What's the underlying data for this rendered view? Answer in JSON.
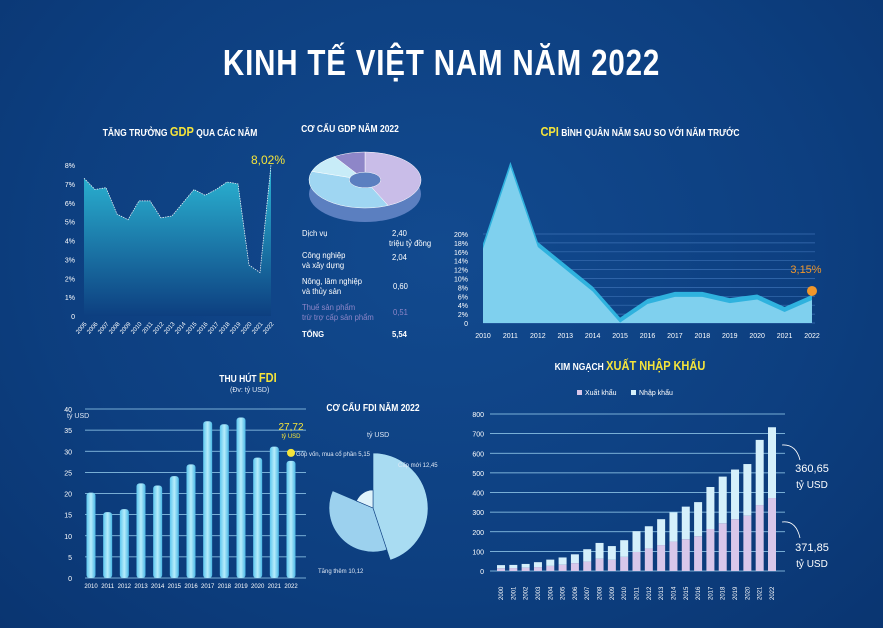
{
  "title": "KINH TẾ VIỆT NAM NĂM 2022",
  "colors": {
    "background": "#0d3f80",
    "area": "#7fd0ee",
    "highlight": "#f5e43a",
    "cpi_marker": "#f0962a",
    "export": "#d8c7ea",
    "import": "#d5f0fb"
  },
  "chart_data": [
    {
      "type": "area",
      "title_pre": "TĂNG TRƯỞNG ",
      "title_hl": "GDP",
      "title_post": " QUA CÁC NĂM",
      "x": [
        "2005",
        "2006",
        "2007",
        "2008",
        "2009",
        "2010",
        "2011",
        "2012",
        "2013",
        "2014",
        "2015",
        "2016",
        "2017",
        "2018",
        "2019",
        "2020",
        "2021",
        "2022"
      ],
      "values": [
        7.3,
        6.7,
        6.8,
        5.4,
        5.1,
        6.1,
        6.1,
        5.2,
        5.3,
        6.0,
        6.7,
        6.4,
        6.7,
        7.1,
        7.0,
        2.7,
        2.3,
        8.02
      ],
      "yticks": [
        "0",
        "1%",
        "2%",
        "3%",
        "4%",
        "5%",
        "6%",
        "7%",
        "8%"
      ],
      "ylim": [
        0,
        8
      ],
      "annotation": "8,02%"
    },
    {
      "type": "pie",
      "title": "CƠ CẤU GDP NĂM 2022",
      "unit": "triệu tỷ đồng",
      "items": [
        {
          "label": "Dịch vụ",
          "value": "2,40",
          "v": 2.4,
          "color": "#c9bde8"
        },
        {
          "label": "Công nghiệp\nvà xây dựng",
          "value": "2,04",
          "v": 2.04,
          "color": "#9fd6f2"
        },
        {
          "label": "Nông, lâm nghiệp\nvà thủy sản",
          "value": "0,60",
          "v": 0.6,
          "color": "#c8ecf8"
        },
        {
          "label": "Thuế sản phẩm\ntrừ trợ cấp sản phẩm",
          "value": "0,51",
          "v": 0.51,
          "color": "#8e86c8"
        }
      ],
      "total_label": "TỔNG",
      "total_value": "5,54"
    },
    {
      "type": "area",
      "title_hl": "CPI",
      "title_post": " BÌNH QUÂN NĂM SAU SO VỚI NĂM TRƯỚC",
      "x": [
        "2010",
        "2011",
        "2012",
        "2013",
        "2014",
        "2015",
        "2016",
        "2017",
        "2018",
        "2019",
        "2020",
        "2021",
        "2022"
      ],
      "values": [
        8.9,
        18.1,
        9.1,
        6.6,
        4.1,
        0.6,
        2.7,
        3.5,
        3.5,
        2.8,
        3.2,
        1.8,
        3.15
      ],
      "yticks": [
        "0",
        "2%",
        "4%",
        "6%",
        "8%",
        "10%",
        "12%",
        "14%",
        "16%",
        "18%",
        "20%"
      ],
      "ylim": [
        0,
        20
      ],
      "grid": true,
      "annotation": "3,15%"
    },
    {
      "type": "bar",
      "title_pre": "THU HÚT ",
      "title_hl": "FDI",
      "subtitle": "(Đv: tỷ USD)",
      "ylabel": "tỷ USD",
      "x": [
        "2010",
        "2011",
        "2012",
        "2013",
        "2014",
        "2015",
        "2016",
        "2017",
        "2018",
        "2019",
        "2020",
        "2021",
        "2022"
      ],
      "values": [
        20.2,
        15.6,
        16.3,
        22.4,
        21.9,
        24.1,
        26.9,
        37.1,
        36.4,
        38.0,
        28.5,
        31.1,
        27.72
      ],
      "yticks": [
        "0",
        "5",
        "10",
        "15",
        "20",
        "25",
        "30",
        "35",
        "40"
      ],
      "ylim": [
        0,
        40
      ],
      "grid": true,
      "annotation": "27,72",
      "annotation_unit": "tỷ USD"
    },
    {
      "type": "pie",
      "title": "CƠ CẤU FDI NĂM 2022",
      "unit": "tỷ USD",
      "items": [
        {
          "label": "Cấp mới 12,45",
          "v": 12.45
        },
        {
          "label": "Tăng thêm 10,12",
          "v": 10.12
        },
        {
          "label": "Góp vốn, mua cổ phần 5,15",
          "v": 5.15
        }
      ]
    },
    {
      "type": "stacked-bar",
      "title_pre": "KIM NGẠCH ",
      "title_hl": "XUẤT NHẬP KHẨU",
      "legend": [
        "Xuất khẩu",
        "Nhập khẩu"
      ],
      "legend_position": "top",
      "x": [
        "2000",
        "2001",
        "2002",
        "2003",
        "2004",
        "2005",
        "2006",
        "2007",
        "2008",
        "2009",
        "2010",
        "2011",
        "2012",
        "2013",
        "2014",
        "2015",
        "2016",
        "2017",
        "2018",
        "2019",
        "2020",
        "2021",
        "2022"
      ],
      "series": [
        {
          "name": "Xuất khẩu",
          "values": [
            14,
            15,
            17,
            20,
            26,
            32,
            40,
            48,
            63,
            57,
            72,
            97,
            115,
            132,
            150,
            162,
            177,
            214,
            243,
            264,
            282,
            336,
            371.85
          ]
        },
        {
          "name": "Nhập khẩu",
          "values": [
            16,
            16,
            19,
            25,
            32,
            37,
            45,
            63,
            80,
            70,
            85,
            106,
            113,
            132,
            148,
            166,
            174,
            214,
            238,
            253,
            263,
            332,
            360.65
          ]
        }
      ],
      "yticks": [
        "0",
        "100",
        "200",
        "300",
        "400",
        "500",
        "600",
        "700",
        "800"
      ],
      "ylim": [
        0,
        800
      ],
      "grid": true,
      "annotations": [
        {
          "value": "360,65",
          "unit": "tỷ USD"
        },
        {
          "value": "371,85",
          "unit": "tỷ USD"
        }
      ]
    }
  ]
}
